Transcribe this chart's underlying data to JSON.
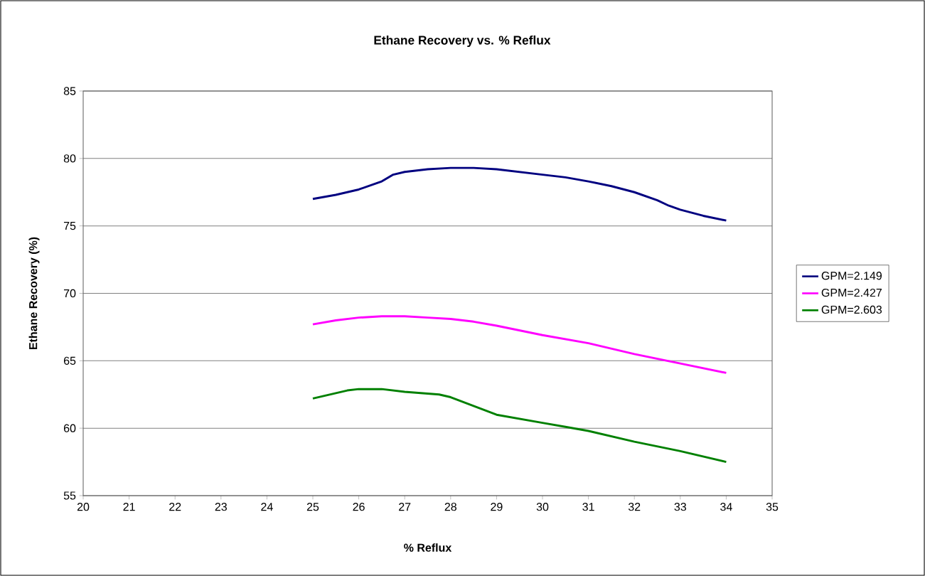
{
  "chart_data": {
    "type": "line",
    "title": "Ethane Recovery vs. % Reflux",
    "xlabel": "% Reflux",
    "ylabel": "Ethane Recovery (%)",
    "xlim": [
      20,
      35
    ],
    "xticks": [
      20,
      21,
      22,
      23,
      24,
      25,
      26,
      27,
      28,
      29,
      30,
      31,
      32,
      33,
      34,
      35
    ],
    "ylim": [
      55,
      85
    ],
    "yticks": [
      55,
      60,
      65,
      70,
      75,
      80,
      85
    ],
    "grid": "y",
    "legend": "right",
    "marker": "none",
    "line_style": "solid",
    "series": [
      {
        "name": "GPM=2.149",
        "color": "#000080",
        "x": [
          25,
          25.5,
          26,
          26.5,
          26.75,
          27,
          27.5,
          28,
          28.5,
          29,
          30,
          30.5,
          31,
          31.5,
          32,
          32.5,
          32.75,
          33,
          33.5,
          34
        ],
        "values": [
          77.0,
          77.3,
          77.7,
          78.3,
          78.8,
          79.0,
          79.2,
          79.3,
          79.3,
          79.2,
          78.8,
          78.6,
          78.3,
          77.95,
          77.5,
          76.9,
          76.5,
          76.2,
          75.75,
          75.4
        ]
      },
      {
        "name": "GPM=2.427",
        "color": "#ff00ff",
        "x": [
          25,
          25.5,
          26,
          26.5,
          27,
          27.5,
          28,
          28.5,
          29,
          30,
          31,
          32,
          33,
          34
        ],
        "values": [
          67.7,
          68.0,
          68.2,
          68.3,
          68.3,
          68.2,
          68.1,
          67.9,
          67.6,
          66.9,
          66.3,
          65.5,
          64.8,
          64.1
        ]
      },
      {
        "name": "GPM=2.603",
        "color": "#008000",
        "x": [
          25,
          25.75,
          26,
          26.5,
          27,
          27.75,
          28,
          29,
          30,
          30.5,
          31,
          32,
          33,
          34
        ],
        "values": [
          62.2,
          62.8,
          62.9,
          62.9,
          62.7,
          62.5,
          62.3,
          61.0,
          60.4,
          60.1,
          59.8,
          59.0,
          58.3,
          57.5
        ]
      }
    ]
  }
}
